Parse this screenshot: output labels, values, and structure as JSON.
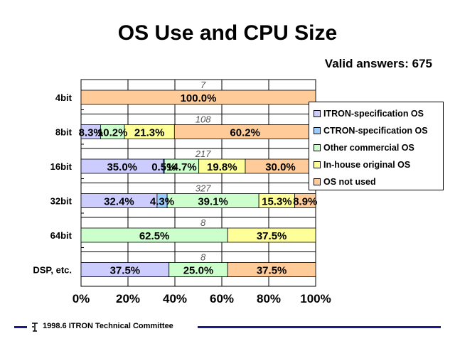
{
  "title": "OS Use and CPU Size",
  "subtitle": "Valid answers: 675",
  "footer": {
    "text": "1998.6 ITRON Technical Committee",
    "logo_icon": "itron-logo-icon"
  },
  "chart_data": {
    "type": "bar",
    "orientation": "horizontal",
    "stacked": "percent",
    "categories": [
      "4bit",
      "8bit",
      "16bit",
      "32bit",
      "64bit",
      "DSP, etc."
    ],
    "totals": [
      "7",
      "108",
      "217",
      "327",
      "8",
      "8"
    ],
    "series": [
      {
        "name": "ITRON-specification OS",
        "color": "#ccccff",
        "values": [
          0,
          8.3,
          35.0,
          32.4,
          0,
          37.5
        ],
        "labels": [
          "",
          "8.3%",
          "35.0%",
          "32.4%",
          "",
          "37.5%"
        ]
      },
      {
        "name": "CTRON-specification OS",
        "color": "#99ccff",
        "values": [
          0,
          0,
          0.5,
          4.3,
          0,
          0
        ],
        "labels": [
          "",
          "",
          "0.5%",
          "4.3%",
          "",
          ""
        ]
      },
      {
        "name": "Other commercial OS",
        "color": "#ccffcc",
        "values": [
          0,
          10.2,
          14.7,
          39.1,
          62.5,
          25.0
        ],
        "labels": [
          "",
          "10.2%",
          "14.7%",
          "39.1%",
          "62.5%",
          "25.0%"
        ]
      },
      {
        "name": "In-house original OS",
        "color": "#ffff99",
        "values": [
          0,
          21.3,
          19.8,
          15.3,
          37.5,
          0
        ],
        "labels": [
          "",
          "21.3%",
          "19.8%",
          "15.3%",
          "37.5%",
          ""
        ]
      },
      {
        "name": "OS not used",
        "color": "#ffcc99",
        "values": [
          100.0,
          60.2,
          30.0,
          8.9,
          0,
          37.5
        ],
        "labels": [
          "100.0%",
          "60.2%",
          "30.0%",
          "8.9%",
          "",
          "37.5%"
        ]
      }
    ],
    "xticks": [
      "0%",
      "20%",
      "40%",
      "60%",
      "80%",
      "100%"
    ],
    "xlim": [
      0,
      100
    ],
    "grid": true,
    "legend": "right"
  }
}
